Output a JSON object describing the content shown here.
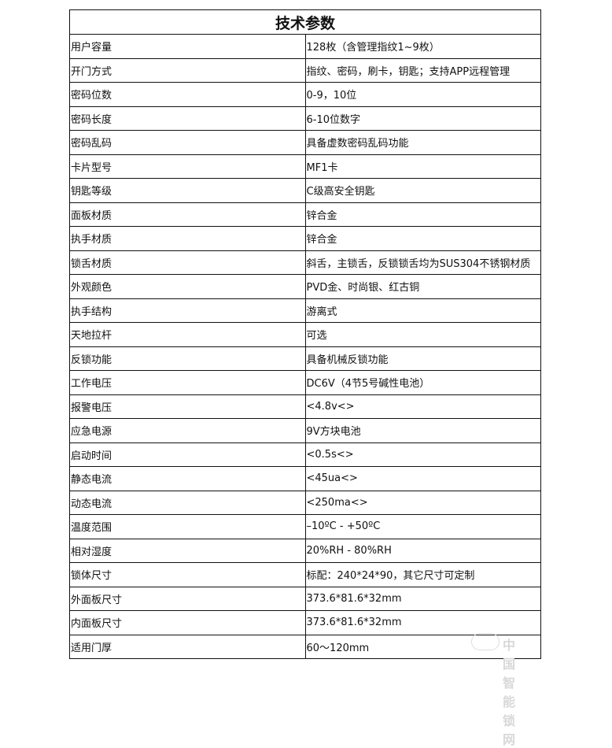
{
  "title": "技术参数",
  "rows": [
    {
      "label": "用户容量",
      "value": "128枚（含管理指纹1~9枚）"
    },
    {
      "label": "开门方式",
      "value": "指纹、密码，刷卡，钥匙；支持APP远程管理"
    },
    {
      "label": "密码位数",
      "value": "0-9，10位"
    },
    {
      "label": "密码长度",
      "value": "6-10位数字"
    },
    {
      "label": "密码乱码",
      "value": "具备虚数密码乱码功能"
    },
    {
      "label": "卡片型号",
      "value": "MF1卡"
    },
    {
      "label": "钥匙等级",
      "value": "C级高安全钥匙"
    },
    {
      "label": "面板材质",
      "value": "锌合金"
    },
    {
      "label": "执手材质",
      "value": "锌合金"
    },
    {
      "label": "锁舌材质",
      "value": "斜舌，主锁舌，反锁锁舌均为SUS304不锈钢材质"
    },
    {
      "label": "外观颜色",
      "value": "PVD金、时尚银、红古铜"
    },
    {
      "label": "执手结构",
      "value": "游离式"
    },
    {
      "label": "天地拉杆",
      "value": "可选"
    },
    {
      "label": "反锁功能",
      "value": "具备机械反锁功能"
    },
    {
      "label": "工作电压",
      "value": "DC6V（4节5号碱性电池）"
    },
    {
      "label": "报警电压",
      "value": "<4.8v<>"
    },
    {
      "label": "应急电源",
      "value": "9V方块电池"
    },
    {
      "label": "启动时间",
      "value": "<0.5s<>"
    },
    {
      "label": "静态电流",
      "value": "<45ua<>"
    },
    {
      "label": "动态电流",
      "value": "<250ma<>"
    },
    {
      "label": "温度范围",
      "value": "–10ºC - +50ºC"
    },
    {
      "label": "相对湿度",
      "value": "20%RH - 80%RH"
    },
    {
      "label": "锁体尺寸",
      "value": "标配：240*24*90，其它尺寸可定制"
    },
    {
      "label": "外面板尺寸",
      "value": "373.6*81.6*32mm"
    },
    {
      "label": "内面板尺寸",
      "value": "373.6*81.6*32mm"
    },
    {
      "label": "适用门厚",
      "value": "60～120mm"
    }
  ],
  "watermark": "中国智能锁网"
}
